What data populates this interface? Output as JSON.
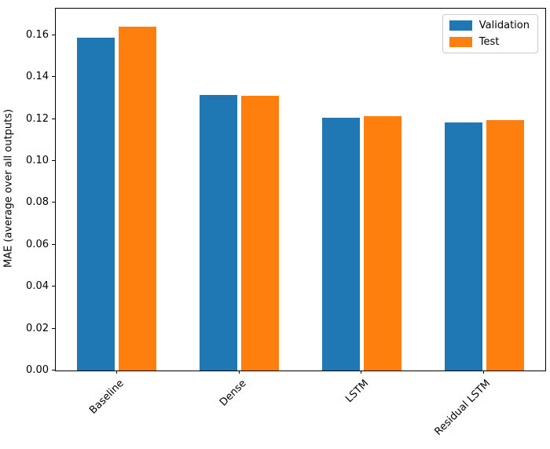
{
  "figure": {
    "background": "#ffffff"
  },
  "chart_data": {
    "type": "bar",
    "title": "",
    "categories": [
      "Baseline",
      "Dense",
      "LSTM",
      "Residual LSTM"
    ],
    "series": [
      {
        "name": "Validation",
        "color": "#1f77b4",
        "values": [
          0.159,
          0.1315,
          0.1205,
          0.1185
        ]
      },
      {
        "name": "Test",
        "color": "#ff7f0e",
        "values": [
          0.164,
          0.131,
          0.1215,
          0.1195
        ]
      }
    ],
    "xlabel": "",
    "ylabel": "MAE (average over all outputs)",
    "ylim": [
      0,
      0.1727
    ],
    "yticks": [
      0,
      0.02,
      0.04,
      0.06,
      0.08,
      0.1,
      0.12,
      0.14,
      0.16
    ],
    "ytick_labels": [
      "0.00",
      "0.02",
      "0.04",
      "0.06",
      "0.08",
      "0.10",
      "0.12",
      "0.14",
      "0.16"
    ],
    "grid": false,
    "legend_position": "upper right",
    "xtick_rotation": 45
  }
}
